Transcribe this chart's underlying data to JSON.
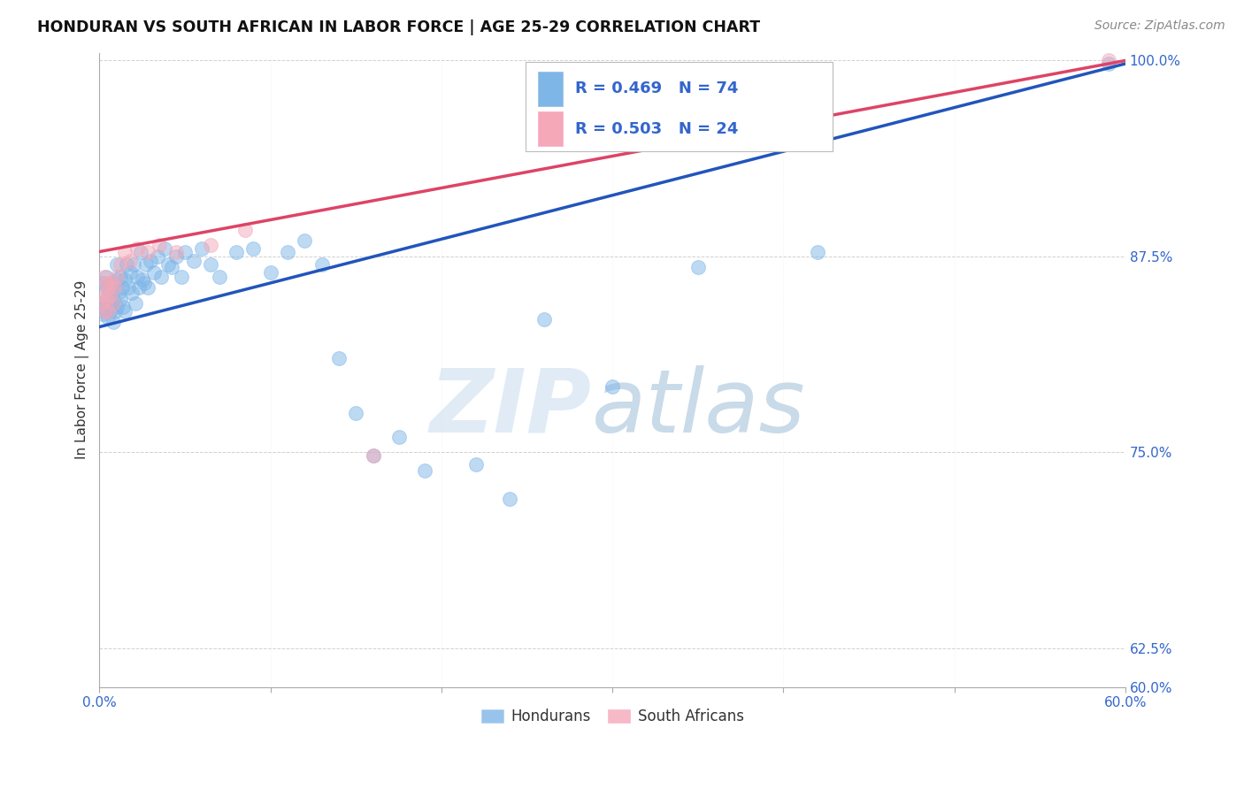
{
  "title": "HONDURAN VS SOUTH AFRICAN IN LABOR FORCE | AGE 25-29 CORRELATION CHART",
  "source": "Source: ZipAtlas.com",
  "ylabel": "In Labor Force | Age 25-29",
  "xlim": [
    0.0,
    0.6
  ],
  "ylim": [
    0.6,
    1.005
  ],
  "xticks": [
    0.0,
    0.1,
    0.2,
    0.3,
    0.4,
    0.5,
    0.6
  ],
  "xticklabels": [
    "0.0%",
    "",
    "",
    "",
    "",
    "",
    "60.0%"
  ],
  "yticks": [
    0.6,
    0.625,
    0.75,
    0.875,
    1.0
  ],
  "yticklabels": [
    "60.0%",
    "62.5%",
    "75.0%",
    "87.5%",
    "100.0%"
  ],
  "blue_color": "#7EB6E8",
  "pink_color": "#F4A8B8",
  "blue_line_color": "#2255BB",
  "pink_line_color": "#DD4466",
  "blue_line_x0": 0.0,
  "blue_line_y0": 0.83,
  "blue_line_x1": 0.6,
  "blue_line_y1": 0.998,
  "pink_line_x0": 0.0,
  "pink_line_y0": 0.878,
  "pink_line_x1": 0.6,
  "pink_line_y1": 1.0,
  "hon_x": [
    0.001,
    0.002,
    0.002,
    0.003,
    0.003,
    0.003,
    0.004,
    0.004,
    0.005,
    0.005,
    0.005,
    0.006,
    0.006,
    0.007,
    0.007,
    0.008,
    0.008,
    0.009,
    0.009,
    0.01,
    0.01,
    0.01,
    0.011,
    0.012,
    0.012,
    0.013,
    0.014,
    0.015,
    0.015,
    0.016,
    0.017,
    0.018,
    0.019,
    0.02,
    0.021,
    0.022,
    0.023,
    0.024,
    0.025,
    0.026,
    0.027,
    0.028,
    0.03,
    0.032,
    0.034,
    0.036,
    0.038,
    0.04,
    0.042,
    0.045,
    0.048,
    0.05,
    0.055,
    0.06,
    0.065,
    0.07,
    0.08,
    0.09,
    0.1,
    0.11,
    0.12,
    0.13,
    0.14,
    0.15,
    0.16,
    0.175,
    0.19,
    0.22,
    0.24,
    0.26,
    0.3,
    0.35,
    0.42,
    0.59
  ],
  "hon_y": [
    0.845,
    0.838,
    0.858,
    0.842,
    0.855,
    0.84,
    0.848,
    0.862,
    0.843,
    0.855,
    0.836,
    0.84,
    0.852,
    0.858,
    0.845,
    0.833,
    0.848,
    0.855,
    0.84,
    0.843,
    0.86,
    0.87,
    0.852,
    0.848,
    0.862,
    0.855,
    0.843,
    0.86,
    0.84,
    0.87,
    0.855,
    0.865,
    0.852,
    0.87,
    0.845,
    0.862,
    0.855,
    0.878,
    0.86,
    0.858,
    0.87,
    0.855,
    0.872,
    0.865,
    0.875,
    0.862,
    0.88,
    0.87,
    0.868,
    0.875,
    0.862,
    0.878,
    0.872,
    0.88,
    0.87,
    0.862,
    0.878,
    0.88,
    0.865,
    0.878,
    0.885,
    0.87,
    0.81,
    0.775,
    0.748,
    0.76,
    0.738,
    0.742,
    0.72,
    0.835,
    0.792,
    0.868,
    0.878,
    0.998
  ],
  "sa_x": [
    0.001,
    0.002,
    0.003,
    0.003,
    0.004,
    0.004,
    0.005,
    0.005,
    0.006,
    0.007,
    0.008,
    0.009,
    0.01,
    0.012,
    0.015,
    0.018,
    0.022,
    0.028,
    0.035,
    0.045,
    0.065,
    0.085,
    0.16,
    0.59
  ],
  "sa_y": [
    0.845,
    0.85,
    0.84,
    0.862,
    0.848,
    0.858,
    0.855,
    0.84,
    0.85,
    0.858,
    0.845,
    0.855,
    0.862,
    0.87,
    0.878,
    0.872,
    0.88,
    0.878,
    0.882,
    0.878,
    0.882,
    0.892,
    0.748,
    1.0
  ]
}
